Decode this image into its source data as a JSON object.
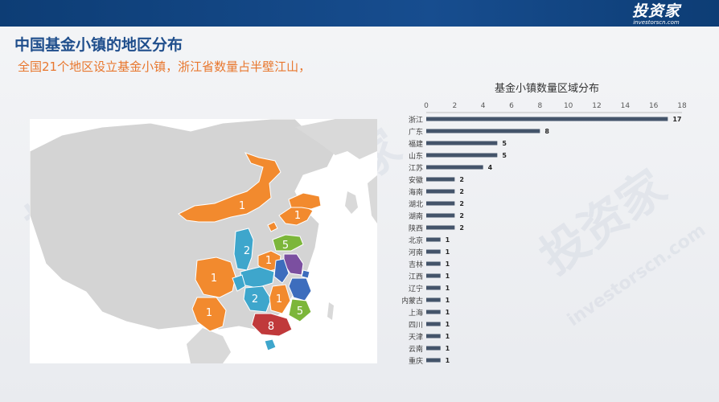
{
  "header": {
    "logo_text": "投资家",
    "logo_sub": "investorscn.com"
  },
  "page": {
    "title": "中国基金小镇的地区分布",
    "subtitle": "全国21个地区设立基金小镇，浙江省数量占半壁江山，"
  },
  "watermark": {
    "text_cn": "投资家",
    "text_en": "investorscn.com"
  },
  "map": {
    "region_labels": [
      "1",
      "1",
      "2",
      "1",
      "5",
      "1",
      "1",
      "2",
      "1",
      "5",
      "8"
    ],
    "colors": {
      "orange": "#f28a2e",
      "blue": "#3ea6cc",
      "green": "#7cb63a",
      "purple": "#7b4fa0",
      "red": "#c0393b",
      "navy": "#3d6dbd",
      "base": "#d4d4d4"
    }
  },
  "chart_data": {
    "type": "bar",
    "orientation": "horizontal",
    "title": "基金小镇数量区域分布",
    "categories": [
      "浙江",
      "广东",
      "福建",
      "山东",
      "江苏",
      "安徽",
      "海南",
      "湖北",
      "湖南",
      "陕西",
      "北京",
      "河南",
      "吉林",
      "江西",
      "辽宁",
      "内蒙古",
      "上海",
      "四川",
      "天津",
      "云南",
      "重庆"
    ],
    "values": [
      17,
      8,
      5,
      5,
      4,
      2,
      2,
      2,
      2,
      2,
      1,
      1,
      1,
      1,
      1,
      1,
      1,
      1,
      1,
      1,
      1
    ],
    "xlim": [
      0,
      18
    ],
    "xticks": [
      "0",
      "2",
      "4",
      "6",
      "8",
      "10",
      "12",
      "14",
      "16",
      "18"
    ],
    "bar_color": "#44546a",
    "axis_position": "top"
  }
}
